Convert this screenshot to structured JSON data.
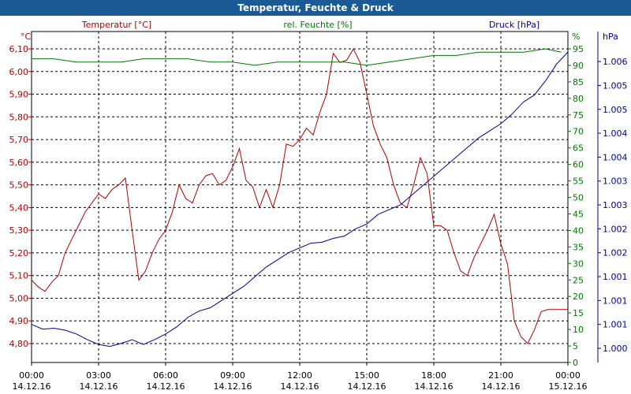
{
  "window": {
    "title": "Temperatur, Feuchte & Druck"
  },
  "colors": {
    "temperature": "#b00000",
    "humidity": "#007800",
    "pressure": "#000090",
    "grid": "#000000",
    "titlebar": "#1c5a96"
  },
  "chart_data": {
    "type": "line",
    "title": "Temperatur, Feuchte & Druck",
    "x_ticks": [
      {
        "time": "00:00",
        "date": "14.12.16"
      },
      {
        "time": "03:00",
        "date": "14.12.16"
      },
      {
        "time": "06:00",
        "date": "14.12.16"
      },
      {
        "time": "09:00",
        "date": "14.12.16"
      },
      {
        "time": "12:00",
        "date": "14.12.16"
      },
      {
        "time": "15:00",
        "date": "14.12.16"
      },
      {
        "time": "18:00",
        "date": "14.12.16"
      },
      {
        "time": "21:00",
        "date": "14.12.16"
      },
      {
        "time": "00:00",
        "date": "15.12.16"
      }
    ],
    "x_range_hours": [
      0,
      24
    ],
    "grid": true,
    "axes": {
      "left": {
        "unit": "°C",
        "label": "Temperatur [°C]",
        "ticks": [
          "4,80",
          "4,90",
          "5,00",
          "5,10",
          "5,20",
          "5,30",
          "5,40",
          "5,50",
          "5,60",
          "5,70",
          "5,80",
          "5,90",
          "6,00",
          "6,10"
        ],
        "range": [
          4.7,
          6.15
        ]
      },
      "right1": {
        "unit": "%",
        "label": "rel. Feuchte [%]",
        "ticks": [
          "0",
          "5",
          "10",
          "15",
          "20",
          "25",
          "30",
          "35",
          "40",
          "45",
          "50",
          "55",
          "60",
          "65",
          "70",
          "75",
          "80",
          "85",
          "90",
          "95"
        ],
        "range": [
          0,
          95
        ]
      },
      "right2": {
        "unit": "hPa",
        "label": "Druck [hPa]",
        "ticks": [
          "1.000",
          "1.001",
          "1.001",
          "1.001",
          "1.002",
          "1.002",
          "1.003",
          "1.003",
          "1.004",
          "1.004",
          "1.005",
          "1.005",
          "1.006"
        ]
      }
    },
    "series": [
      {
        "name": "Temperatur [°C]",
        "axis": "left",
        "x": [
          0,
          0.3,
          0.6,
          0.9,
          1.2,
          1.5,
          1.8,
          2.1,
          2.4,
          2.7,
          3,
          3.3,
          3.6,
          3.9,
          4.2,
          4.5,
          4.8,
          5.1,
          5.4,
          5.7,
          6,
          6.3,
          6.6,
          6.9,
          7.2,
          7.5,
          7.8,
          8.1,
          8.4,
          8.7,
          9,
          9.3,
          9.6,
          9.9,
          10.2,
          10.5,
          10.8,
          11.1,
          11.4,
          11.7,
          12,
          12.3,
          12.6,
          12.9,
          13.2,
          13.5,
          13.8,
          14.1,
          14.4,
          14.7,
          15,
          15.3,
          15.6,
          15.9,
          16.2,
          16.5,
          16.8,
          17.1,
          17.4,
          17.7,
          18,
          18.3,
          18.6,
          18.9,
          19.2,
          19.5,
          19.8,
          20.1,
          20.4,
          20.7,
          21,
          21.3,
          21.6,
          21.9,
          22.2,
          22.5,
          22.8,
          23.1,
          23.4,
          23.7,
          24
        ],
        "values": [
          5.08,
          5.05,
          5.03,
          5.07,
          5.1,
          5.2,
          5.26,
          5.32,
          5.38,
          5.42,
          5.46,
          5.44,
          5.48,
          5.5,
          5.53,
          5.3,
          5.08,
          5.12,
          5.2,
          5.26,
          5.3,
          5.38,
          5.5,
          5.44,
          5.42,
          5.5,
          5.54,
          5.55,
          5.5,
          5.52,
          5.58,
          5.66,
          5.52,
          5.49,
          5.4,
          5.48,
          5.4,
          5.5,
          5.68,
          5.67,
          5.7,
          5.75,
          5.72,
          5.82,
          5.9,
          6.08,
          6.04,
          6.05,
          6.1,
          6.04,
          5.9,
          5.76,
          5.68,
          5.62,
          5.5,
          5.42,
          5.4,
          5.5,
          5.62,
          5.55,
          5.32,
          5.32,
          5.3,
          5.2,
          5.12,
          5.1,
          5.18,
          5.24,
          5.3,
          5.37,
          5.24,
          5.15,
          4.9,
          4.83,
          4.8,
          4.86,
          4.94,
          4.95,
          4.95,
          4.95,
          4.95
        ]
      },
      {
        "name": "rel. Feuchte [%]",
        "axis": "right1",
        "x": [
          0,
          1,
          2,
          3,
          4,
          5,
          6,
          7,
          8,
          9,
          10,
          11,
          12,
          13,
          14,
          15,
          16,
          17,
          18,
          19,
          20,
          21,
          22,
          23,
          23.7
        ],
        "values": [
          92,
          92,
          91,
          91,
          91,
          92,
          92,
          92,
          91,
          91,
          90,
          91,
          91,
          91,
          91,
          90,
          91,
          92,
          93,
          93,
          94,
          94,
          94,
          95,
          94
        ]
      },
      {
        "name": "Druck [hPa]",
        "axis": "right2",
        "x": [
          0,
          0.5,
          1,
          1.5,
          2,
          2.5,
          3,
          3.5,
          4,
          4.5,
          5,
          5.5,
          6,
          6.5,
          7,
          7.5,
          8,
          8.5,
          9,
          9.5,
          10,
          10.5,
          11,
          11.5,
          12,
          12.5,
          13,
          13.5,
          14,
          14.5,
          15,
          15.5,
          16,
          16.5,
          17,
          17.5,
          18,
          18.5,
          19,
          19.5,
          20,
          20.5,
          21,
          21.5,
          22,
          22.5,
          23,
          23.5,
          24
        ],
        "values": [
          1000.5,
          1000.4,
          1000.42,
          1000.38,
          1000.3,
          1000.18,
          1000.08,
          1000.04,
          1000.1,
          1000.18,
          1000.08,
          1000.18,
          1000.3,
          1000.45,
          1000.65,
          1000.78,
          1000.85,
          1001.0,
          1001.15,
          1001.3,
          1001.5,
          1001.7,
          1001.85,
          1002.0,
          1002.1,
          1002.2,
          1002.22,
          1002.3,
          1002.35,
          1002.5,
          1002.6,
          1002.8,
          1002.9,
          1003.0,
          1003.2,
          1003.4,
          1003.6,
          1003.8,
          1004.0,
          1004.2,
          1004.4,
          1004.55,
          1004.7,
          1004.9,
          1005.15,
          1005.3,
          1005.6,
          1005.95,
          1006.2
        ]
      }
    ]
  }
}
